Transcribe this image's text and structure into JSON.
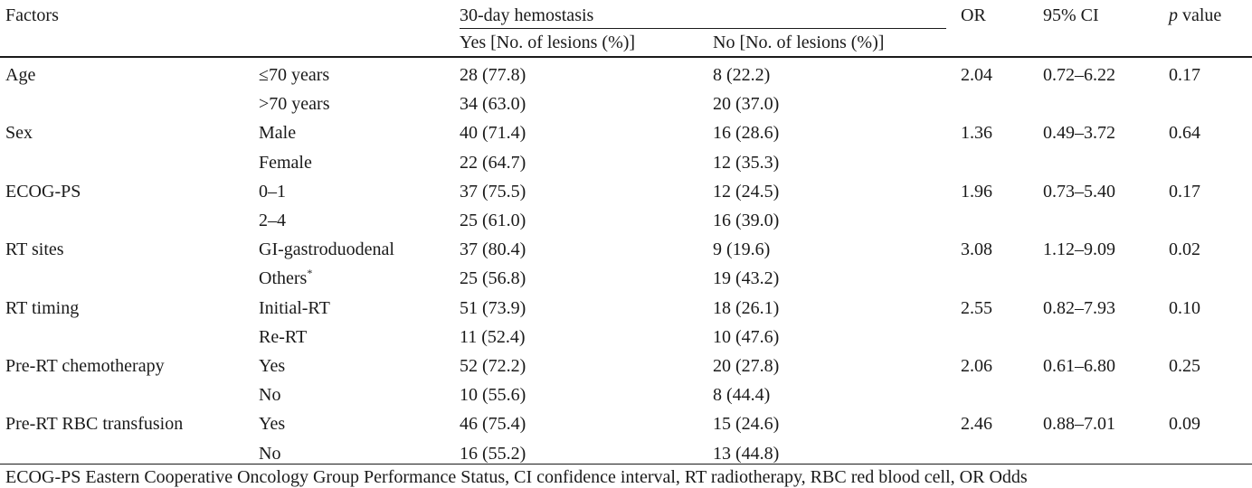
{
  "headers": {
    "factors": "Factors",
    "group": "30-day hemostasis",
    "yes": "Yes [No. of lesions (%)]",
    "no": "No [No. of lesions (%)]",
    "or": "OR",
    "ci": "95% CI",
    "p_italic": "p",
    "p_rest": " value"
  },
  "rows": [
    {
      "factor": "Age",
      "level": "≤70 years",
      "yes": "28 (77.8)",
      "no": "8 (22.2)",
      "or": "2.04",
      "ci": "0.72–6.22",
      "p": "0.17"
    },
    {
      "factor": "",
      "level": ">70 years",
      "yes": "34 (63.0)",
      "no": "20 (37.0)",
      "or": "",
      "ci": "",
      "p": ""
    },
    {
      "factor": "Sex",
      "level": "Male",
      "yes": "40 (71.4)",
      "no": "16 (28.6)",
      "or": "1.36",
      "ci": "0.49–3.72",
      "p": "0.64"
    },
    {
      "factor": "",
      "level": "Female",
      "yes": "22 (64.7)",
      "no": "12 (35.3)",
      "or": "",
      "ci": "",
      "p": ""
    },
    {
      "factor": "ECOG-PS",
      "level": "0–1",
      "yes": "37 (75.5)",
      "no": "12 (24.5)",
      "or": "1.96",
      "ci": "0.73–5.40",
      "p": "0.17"
    },
    {
      "factor": "",
      "level": "2–4",
      "yes": "25 (61.0)",
      "no": "16 (39.0)",
      "or": "",
      "ci": "",
      "p": ""
    },
    {
      "factor": "RT sites",
      "level": "GI-gastroduodenal",
      "yes": "37 (80.4)",
      "no": "9 (19.6)",
      "or": "3.08",
      "ci": "1.12–9.09",
      "p": "0.02"
    },
    {
      "factor": "",
      "level": "Others",
      "level_sup": "*",
      "yes": "25 (56.8)",
      "no": "19 (43.2)",
      "or": "",
      "ci": "",
      "p": ""
    },
    {
      "factor": "RT timing",
      "level": "Initial-RT",
      "yes": "51 (73.9)",
      "no": "18 (26.1)",
      "or": "2.55",
      "ci": "0.82–7.93",
      "p": "0.10"
    },
    {
      "factor": "",
      "level": "Re-RT",
      "yes": "11 (52.4)",
      "no": "10 (47.6)",
      "or": "",
      "ci": "",
      "p": ""
    },
    {
      "factor": "Pre-RT chemotherapy",
      "level": "Yes",
      "yes": "52 (72.2)",
      "no": "20 (27.8)",
      "or": "2.06",
      "ci": "0.61–6.80",
      "p": "0.25"
    },
    {
      "factor": "",
      "level": "No",
      "yes": "10 (55.6)",
      "no": "8 (44.4)",
      "or": "",
      "ci": "",
      "p": ""
    },
    {
      "factor": "Pre-RT RBC transfusion",
      "level": "Yes",
      "yes": "46 (75.4)",
      "no": "15 (24.6)",
      "or": "2.46",
      "ci": "0.88–7.01",
      "p": "0.09"
    },
    {
      "factor": "",
      "level": "No",
      "yes": "16 (55.2)",
      "no": "13 (44.8)",
      "or": "",
      "ci": "",
      "p": ""
    }
  ],
  "footnote": "ECOG-PS Eastern Cooperative Oncology Group Performance Status, CI confidence interval, RT radiotherapy, RBC red blood cell, OR Odds"
}
